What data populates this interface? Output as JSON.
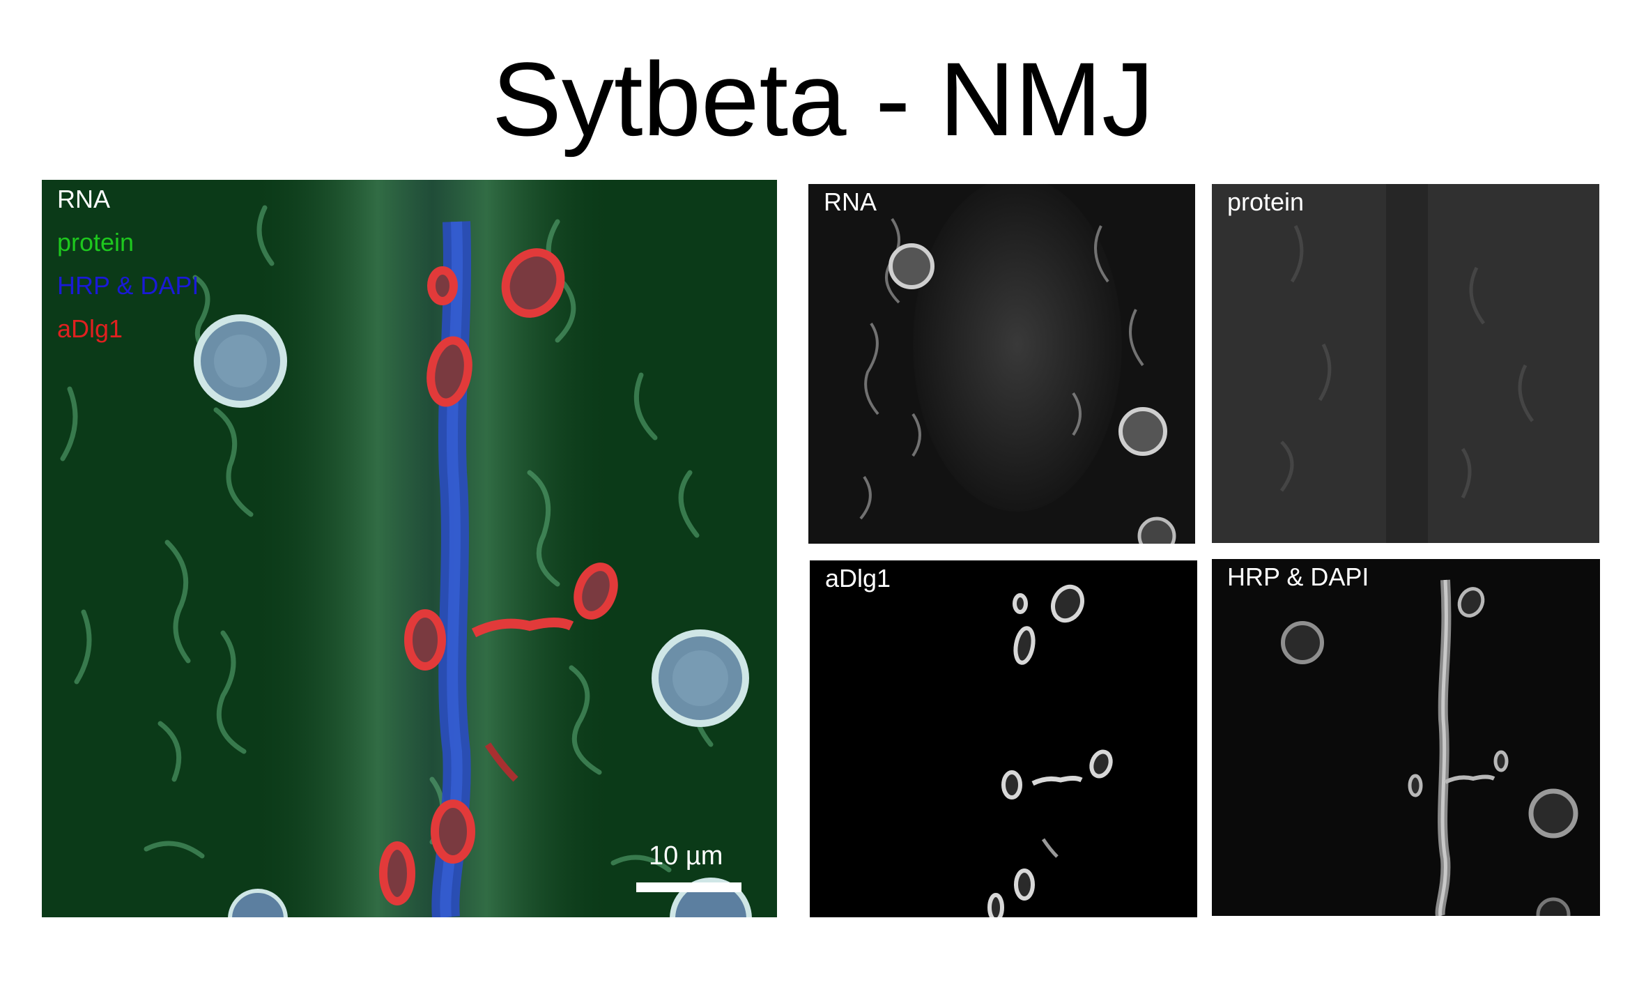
{
  "figure": {
    "title": "Sytbeta - NMJ"
  },
  "merge_panel": {
    "legend": [
      {
        "label": "RNA",
        "color": "#ffffff"
      },
      {
        "label": "protein",
        "color": "#1ec81e"
      },
      {
        "label": "HRP & DAPI",
        "color": "#1a1ad6"
      },
      {
        "label": "aDlg1",
        "color": "#e02020"
      }
    ],
    "scale_bar_label": "10 µm"
  },
  "channel_panels": [
    {
      "label": "RNA"
    },
    {
      "label": "protein"
    },
    {
      "label": "aDlg1"
    },
    {
      "label": "HRP & DAPI"
    }
  ]
}
